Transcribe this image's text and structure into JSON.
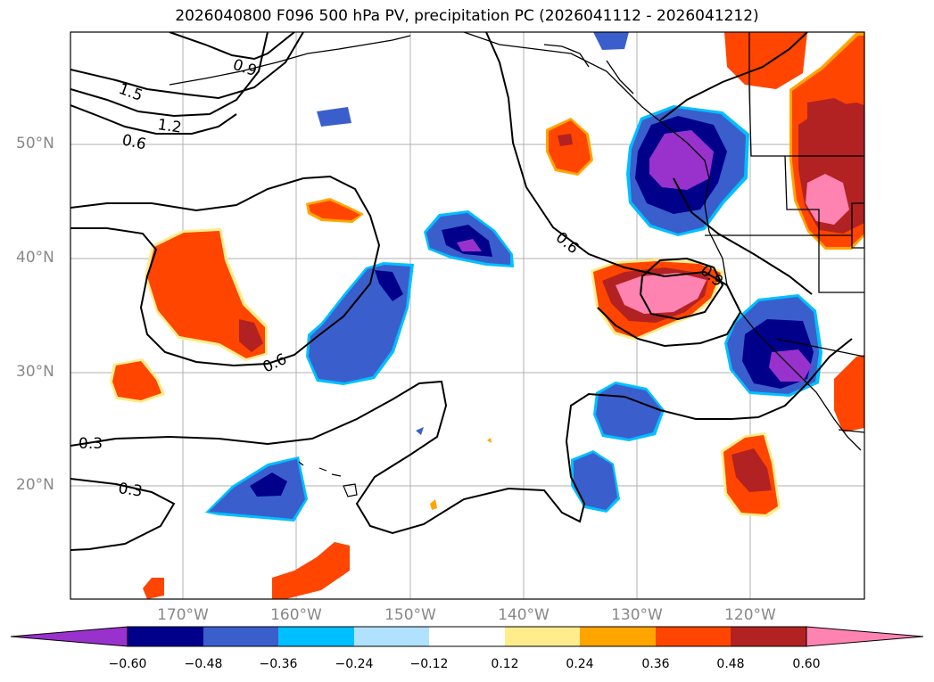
{
  "title": "2026040800 F096 500 hPa PV, precipitation PC (2026041112 - 2026041212)",
  "map": {
    "lat_labels": [
      "50°N",
      "40°N",
      "30°N",
      "20°N"
    ],
    "lon_labels": [
      "170°W",
      "160°W",
      "150°W",
      "140°W",
      "130°W",
      "120°W"
    ],
    "contour_labels": [
      "1.5",
      "1.2",
      "0.9",
      "0.6",
      "0.6",
      "0.6",
      "0.9",
      "0.3",
      "0.3"
    ],
    "fill_colors": {
      "neg_060": "#9932cc",
      "neg_048": "#00008b",
      "neg_036": "#3a5fcd",
      "neg_024": "#00bfff",
      "neg_012": "#b0e2ff",
      "pos_012": "#ffec8b",
      "pos_024": "#ffa500",
      "pos_036": "#ff4500",
      "pos_048": "#b22222",
      "pos_060": "#ff83b0"
    }
  },
  "colorbar": {
    "colors": [
      "#9932cc",
      "#00008b",
      "#3a5fcd",
      "#00bfff",
      "#b0e2ff",
      "#ffffff",
      "#ffec8b",
      "#ffa500",
      "#ff4500",
      "#b22222",
      "#ff83b0"
    ],
    "ticks": [
      "−0.60",
      "−0.48",
      "−0.36",
      "−0.24",
      "−0.12",
      "0.12",
      "0.24",
      "0.36",
      "0.48",
      "0.60"
    ]
  }
}
